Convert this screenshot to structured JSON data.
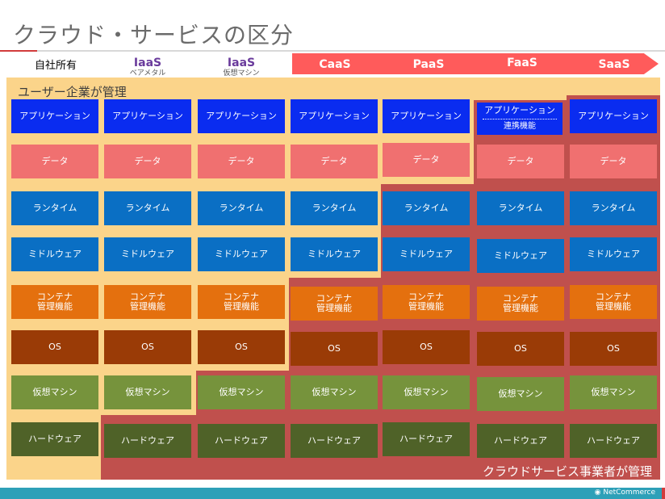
{
  "title": "クラウド・サービスの区分",
  "columns": [
    {
      "main": "自社所有",
      "sub": ""
    },
    {
      "main": "IaaS",
      "sub": "ベアメタル"
    },
    {
      "main": "IaaS",
      "sub": "仮想マシン"
    },
    {
      "main": "CaaS",
      "sub": ""
    },
    {
      "main": "PaaS",
      "sub": ""
    },
    {
      "main": "FaaS",
      "sub": ""
    },
    {
      "main": "SaaS",
      "sub": ""
    }
  ],
  "zones": {
    "user": "ユーザー企業が管理",
    "vendor": "クラウドサービス事業者が管理"
  },
  "layers": {
    "application": "アプリケーション",
    "application_sub": "連携機能",
    "data": "データ",
    "runtime": "ランタイム",
    "middleware": "ミドルウェア",
    "container_line1": "コンテナ",
    "container_line2": "管理機能",
    "os": "OS",
    "vm": "仮想マシン",
    "hardware": "ハードウェア"
  },
  "footer": {
    "logo": "NetCommerce"
  },
  "colors": {
    "user_zone": "#fbd48a",
    "vendor_zone": "#c0504d",
    "arrow": "#ff5b5b",
    "application": "#0a2cf0",
    "data": "#f07070",
    "runtime": "#0a6fc4",
    "container": "#e4700e",
    "os": "#9a3b06",
    "vm": "#76933c",
    "hardware": "#4f6228"
  }
}
